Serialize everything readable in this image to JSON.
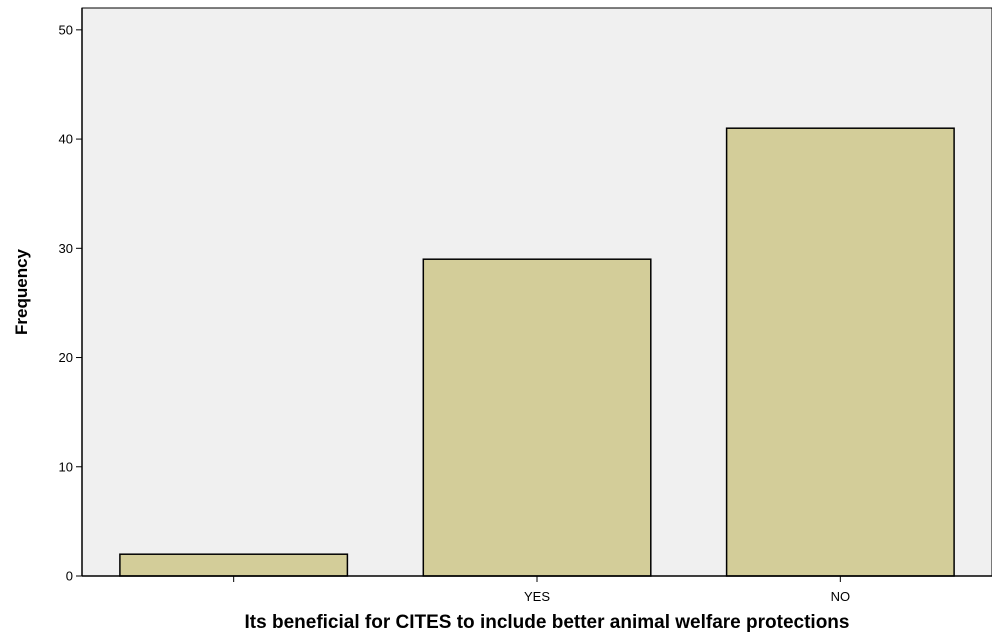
{
  "chart_data": {
    "type": "bar",
    "title": "",
    "xlabel": "Its beneficial for CITES to include better animal welfare protections",
    "ylabel": "Frequency",
    "categories": [
      "",
      "YES",
      "NO"
    ],
    "values": [
      2,
      29,
      41
    ],
    "ylim": [
      0,
      52
    ],
    "yticks": [
      0,
      10,
      20,
      30,
      40,
      50
    ],
    "grid": false,
    "legend": "none",
    "colors": {
      "bar_fill": "#d3cd99",
      "bar_stroke": "#000000",
      "plot_background": "#f0f0f0",
      "axis": "#000000"
    }
  }
}
